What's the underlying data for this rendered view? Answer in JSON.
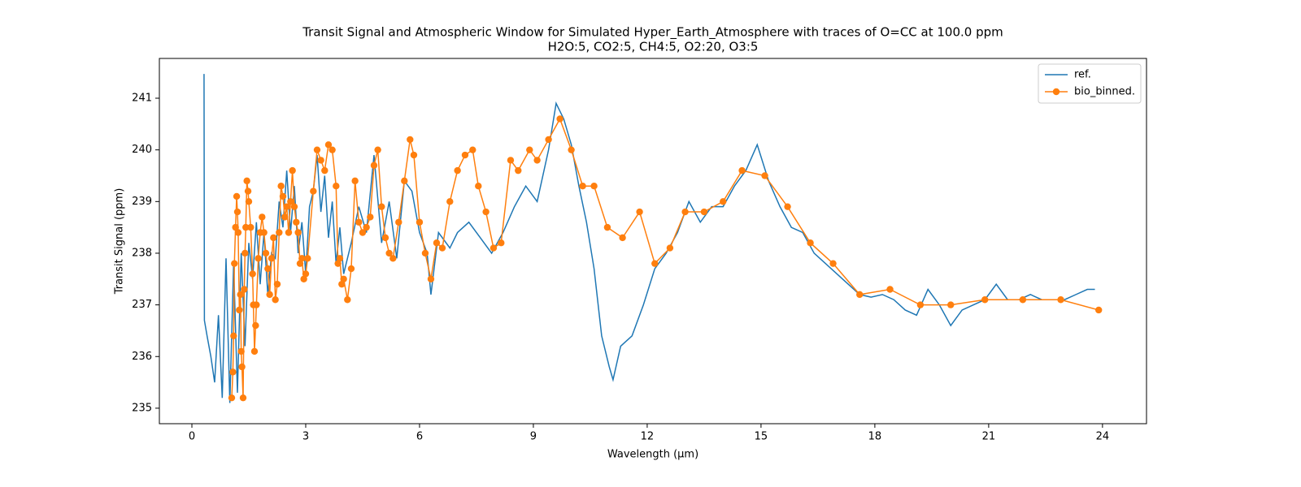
{
  "chart_data": {
    "type": "line",
    "title": "Transit Signal and Atmospheric Window for Simulated Hyper_Earth_Atmosphere with traces of O=CC at 100.0 ppm",
    "subtitle": "H2O:5, CO2:5, CH4:5, O2:20, O3:5",
    "x_label": "Wavelength (μm)",
    "y_label": "Transit Signal (ppm)",
    "xlim": [
      -0.857,
      25.16
    ],
    "ylim": [
      234.7,
      241.77
    ],
    "xticks": [
      0,
      3,
      6,
      9,
      12,
      15,
      18,
      21,
      24
    ],
    "yticks": [
      235,
      236,
      237,
      238,
      239,
      240,
      241
    ],
    "legend": "upper right",
    "series": [
      {
        "name": "ref.",
        "color": "#1f77b4",
        "markers": false,
        "x": [
          0.32,
          0.33,
          0.4,
          0.5,
          0.6,
          0.7,
          0.8,
          0.9,
          1.0,
          1.1,
          1.2,
          1.3,
          1.4,
          1.5,
          1.6,
          1.7,
          1.8,
          1.9,
          2.0,
          2.1,
          2.2,
          2.3,
          2.4,
          2.5,
          2.6,
          2.7,
          2.8,
          2.9,
          3.0,
          3.1,
          3.2,
          3.3,
          3.4,
          3.5,
          3.6,
          3.7,
          3.8,
          3.9,
          4.0,
          4.2,
          4.4,
          4.6,
          4.8,
          5.0,
          5.2,
          5.4,
          5.6,
          5.8,
          6.0,
          6.2,
          6.3,
          6.5,
          6.8,
          7.0,
          7.3,
          7.6,
          7.9,
          8.2,
          8.5,
          8.8,
          9.1,
          9.4,
          9.6,
          9.8,
          10.0,
          10.2,
          10.4,
          10.6,
          10.8,
          11.0,
          11.1,
          11.3,
          11.6,
          11.9,
          12.2,
          12.5,
          12.8,
          13.1,
          13.4,
          13.7,
          14.0,
          14.3,
          14.6,
          14.9,
          15.2,
          15.5,
          15.8,
          16.1,
          16.4,
          16.7,
          17.0,
          17.3,
          17.6,
          17.9,
          18.2,
          18.5,
          18.8,
          19.1,
          19.4,
          19.7,
          20.0,
          20.3,
          20.6,
          20.9,
          21.2,
          21.5,
          21.8,
          22.1,
          22.4,
          22.7,
          23.0,
          23.3,
          23.6,
          23.8
        ],
        "values": [
          241.47,
          236.7,
          236.4,
          236.0,
          235.5,
          236.8,
          235.2,
          237.9,
          235.1,
          237.8,
          235.3,
          238.0,
          236.2,
          238.2,
          237.5,
          238.6,
          237.4,
          238.4,
          237.2,
          238.0,
          237.9,
          239.0,
          238.5,
          239.6,
          238.4,
          239.3,
          238.0,
          238.6,
          237.6,
          238.9,
          239.2,
          239.9,
          238.8,
          239.5,
          238.3,
          239.0,
          237.8,
          238.5,
          237.6,
          238.2,
          238.9,
          238.4,
          239.9,
          238.2,
          239.0,
          237.9,
          239.4,
          239.2,
          238.4,
          238.0,
          237.2,
          238.4,
          238.1,
          238.4,
          238.6,
          238.3,
          238.0,
          238.4,
          238.9,
          239.3,
          239.0,
          240.0,
          240.9,
          240.6,
          240.1,
          239.3,
          238.6,
          237.7,
          236.4,
          235.8,
          235.55,
          236.2,
          236.4,
          237.0,
          237.7,
          238.0,
          238.4,
          239.0,
          238.6,
          238.9,
          238.9,
          239.3,
          239.6,
          240.1,
          239.4,
          238.9,
          238.5,
          238.4,
          238.0,
          237.8,
          237.6,
          237.4,
          237.2,
          237.15,
          237.2,
          237.1,
          236.9,
          236.8,
          237.3,
          237.0,
          236.6,
          236.9,
          237.0,
          237.1,
          237.4,
          237.1,
          237.1,
          237.2,
          237.1,
          237.1,
          237.1,
          237.2,
          237.3,
          237.3
        ]
      },
      {
        "name": "bio_binned.",
        "color": "#ff7f0e",
        "markers": true,
        "x": [
          1.05,
          1.08,
          1.1,
          1.12,
          1.15,
          1.18,
          1.2,
          1.22,
          1.25,
          1.28,
          1.3,
          1.32,
          1.35,
          1.38,
          1.4,
          1.42,
          1.45,
          1.48,
          1.5,
          1.55,
          1.6,
          1.62,
          1.65,
          1.68,
          1.7,
          1.75,
          1.8,
          1.85,
          1.9,
          1.95,
          2.0,
          2.05,
          2.1,
          2.15,
          2.2,
          2.25,
          2.3,
          2.35,
          2.4,
          2.45,
          2.5,
          2.55,
          2.6,
          2.65,
          2.7,
          2.75,
          2.8,
          2.85,
          2.9,
          2.95,
          3.0,
          3.05,
          3.2,
          3.3,
          3.4,
          3.5,
          3.6,
          3.7,
          3.8,
          3.85,
          3.9,
          3.95,
          4.0,
          4.1,
          4.2,
          4.3,
          4.4,
          4.5,
          4.6,
          4.7,
          4.8,
          4.9,
          5.0,
          5.1,
          5.2,
          5.3,
          5.45,
          5.6,
          5.75,
          5.85,
          6.0,
          6.15,
          6.3,
          6.45,
          6.6,
          6.8,
          7.0,
          7.2,
          7.4,
          7.55,
          7.75,
          7.95,
          8.15,
          8.4,
          8.6,
          8.9,
          9.1,
          9.4,
          9.7,
          10.0,
          10.3,
          10.6,
          10.95,
          11.35,
          11.8,
          12.2,
          12.6,
          13.0,
          13.5,
          14.0,
          14.5,
          15.1,
          15.7,
          16.3,
          16.9,
          17.6,
          18.4,
          19.2,
          20.0,
          20.9,
          21.9,
          22.9,
          23.9
        ],
        "values": [
          235.2,
          235.7,
          236.4,
          237.8,
          238.5,
          239.1,
          238.8,
          238.4,
          236.9,
          237.2,
          236.1,
          235.8,
          235.2,
          237.3,
          238.0,
          238.5,
          239.4,
          239.2,
          239.0,
          238.5,
          237.6,
          237.0,
          236.1,
          236.6,
          237.0,
          237.9,
          238.4,
          238.7,
          238.4,
          238.0,
          237.7,
          237.2,
          237.9,
          238.3,
          237.1,
          237.4,
          238.4,
          239.3,
          239.1,
          238.7,
          238.9,
          238.4,
          239.0,
          239.6,
          238.9,
          238.6,
          238.4,
          237.8,
          237.9,
          237.5,
          237.6,
          237.9,
          239.2,
          240.0,
          239.8,
          239.6,
          240.1,
          240.0,
          239.3,
          237.8,
          237.9,
          237.4,
          237.5,
          237.1,
          237.7,
          239.4,
          238.6,
          238.4,
          238.5,
          238.7,
          239.7,
          240.0,
          238.9,
          238.3,
          238.0,
          237.9,
          238.6,
          239.4,
          240.2,
          239.9,
          238.6,
          238.0,
          237.5,
          238.2,
          238.1,
          239.0,
          239.6,
          239.9,
          240.0,
          239.3,
          238.8,
          238.1,
          238.2,
          239.8,
          239.6,
          240.0,
          239.8,
          240.2,
          240.6,
          240.0,
          239.3,
          239.3,
          238.5,
          238.3,
          238.8,
          237.8,
          238.1,
          238.8,
          238.8,
          239.0,
          239.6,
          239.5,
          238.9,
          238.2,
          237.8,
          237.2,
          237.3,
          237.0,
          237.0,
          237.1,
          237.1,
          237.1,
          236.9
        ]
      }
    ]
  }
}
